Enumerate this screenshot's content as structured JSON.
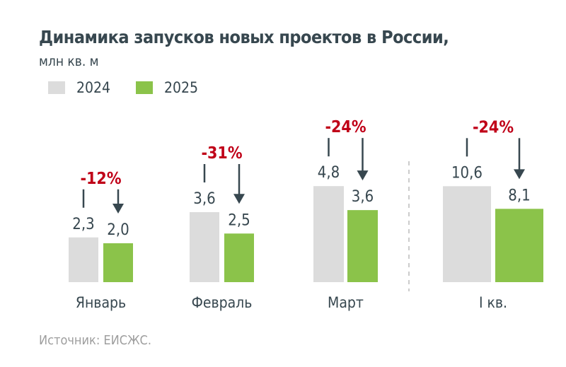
{
  "chart_data": {
    "type": "bar",
    "title": "Динамика запусков новых проектов в России,",
    "subtitle": "млн кв. м",
    "categories": [
      "Январь",
      "Февраль",
      "Март",
      "I кв."
    ],
    "series": [
      {
        "name": "2024",
        "color": "#dcdcdc",
        "values": [
          2.3,
          3.6,
          4.8,
          10.6
        ],
        "labels": [
          "2,3",
          "3,6",
          "4,8",
          "10,6"
        ]
      },
      {
        "name": "2025",
        "color": "#8bc34a",
        "values": [
          2.0,
          2.5,
          3.6,
          8.1
        ],
        "labels": [
          "2,0",
          "2,5",
          "3,6",
          "8,1"
        ]
      }
    ],
    "changes": [
      "-12%",
      "-31%",
      "-24%",
      "-24%"
    ],
    "change_color": "#c00018",
    "legend": "top-left",
    "grid": false,
    "separator_before": "I кв.",
    "source": "Источник: ЕИСЖС."
  }
}
